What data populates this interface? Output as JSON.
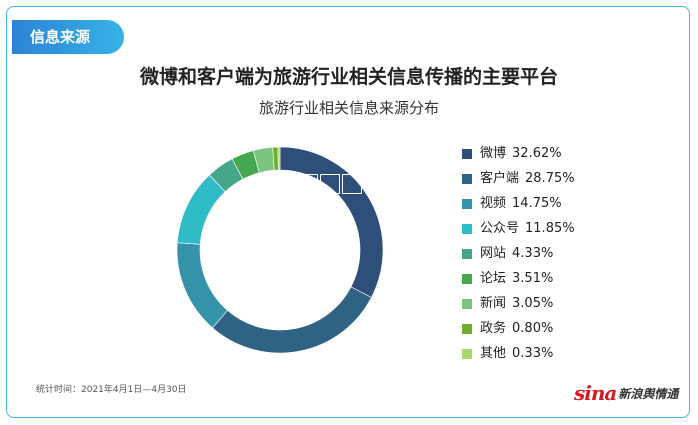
{
  "header": {
    "tag": "信息来源",
    "headline": "微博和客户端为旅游行业相关信息传播的主要平台"
  },
  "chart_data": {
    "type": "pie",
    "donut": true,
    "title": "旅游行业相关信息来源分布",
    "legend_position": "right",
    "series": [
      {
        "name": "微博",
        "value": 32.62,
        "label": "32.62%",
        "color": "#2e4f7a"
      },
      {
        "name": "客户端",
        "value": 28.75,
        "label": "28.75%",
        "color": "#2f6384"
      },
      {
        "name": "视频",
        "value": 14.75,
        "label": "14.75%",
        "color": "#3493a8"
      },
      {
        "name": "公众号",
        "value": 11.85,
        "label": "11.85%",
        "color": "#2fbcc7"
      },
      {
        "name": "网站",
        "value": 4.33,
        "label": "4.33%",
        "color": "#46a68c"
      },
      {
        "name": "论坛",
        "value": 3.51,
        "label": "3.51%",
        "color": "#45a84e"
      },
      {
        "name": "新闻",
        "value": 3.05,
        "label": "3.05%",
        "color": "#7cc57f"
      },
      {
        "name": "政务",
        "value": 0.8,
        "label": "0.80%",
        "color": "#6fae2a"
      },
      {
        "name": "其他",
        "value": 0.33,
        "label": "0.33%",
        "color": "#a6d86a"
      }
    ]
  },
  "footer": {
    "note": "统计时间：2021年4月1日—4月30日",
    "logo_brand": "sina",
    "logo_name": "新浪舆情通"
  }
}
